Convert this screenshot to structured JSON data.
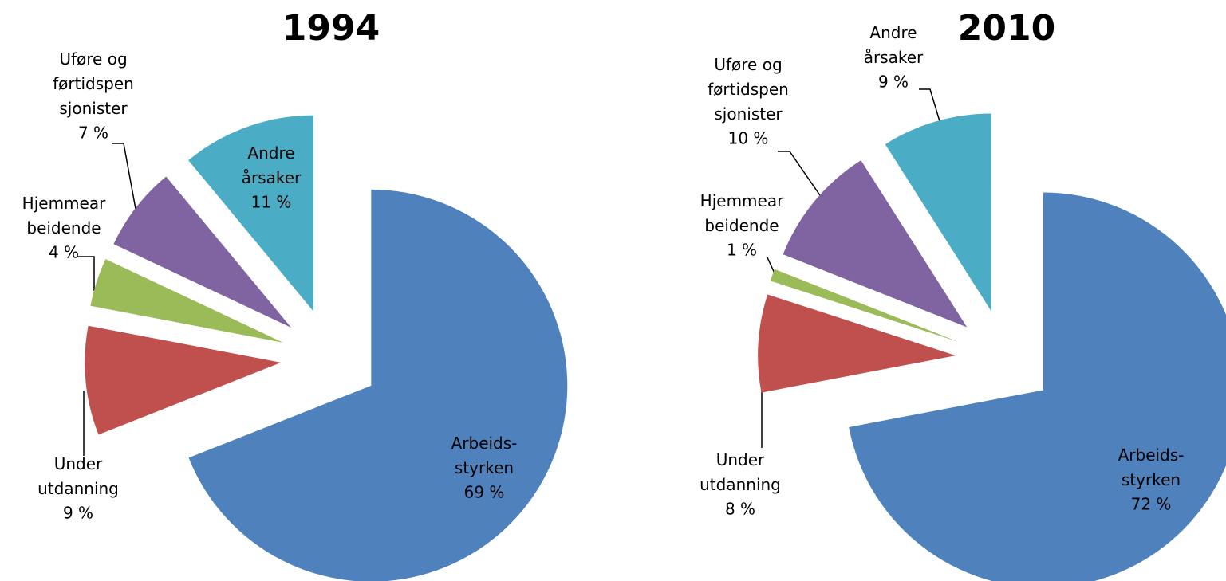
{
  "chart_data": [
    {
      "type": "pie",
      "title": "1994",
      "categories": [
        "Arbeids-\nstyrken",
        "Under\nutdanning",
        "Hjemmear\nbeidende",
        "Uføre og\nførtidspen\nsjonister",
        "Andre\nårsaker"
      ],
      "values": [
        69,
        9,
        4,
        7,
        11
      ],
      "value_labels": [
        "69 %",
        "9 %",
        "4 %",
        "7 %",
        "11 %"
      ],
      "colors": [
        "#4f81bd",
        "#c0504d",
        "#9bbb59",
        "#8064a2",
        "#4bacc6"
      ]
    },
    {
      "type": "pie",
      "title": "2010",
      "categories": [
        "Arbeids-\nstyrken",
        "Under\nutdanning",
        "Hjemmear\nbeidende",
        "Uføre og\nførtidspen\nsjonister",
        "Andre\nårsaker"
      ],
      "values": [
        72,
        8,
        1,
        10,
        9
      ],
      "value_labels": [
        "72 %",
        "8 %",
        "1 %",
        "10 %",
        "9 %"
      ],
      "colors": [
        "#4f81bd",
        "#c0504d",
        "#9bbb59",
        "#8064a2",
        "#4bacc6"
      ]
    }
  ]
}
